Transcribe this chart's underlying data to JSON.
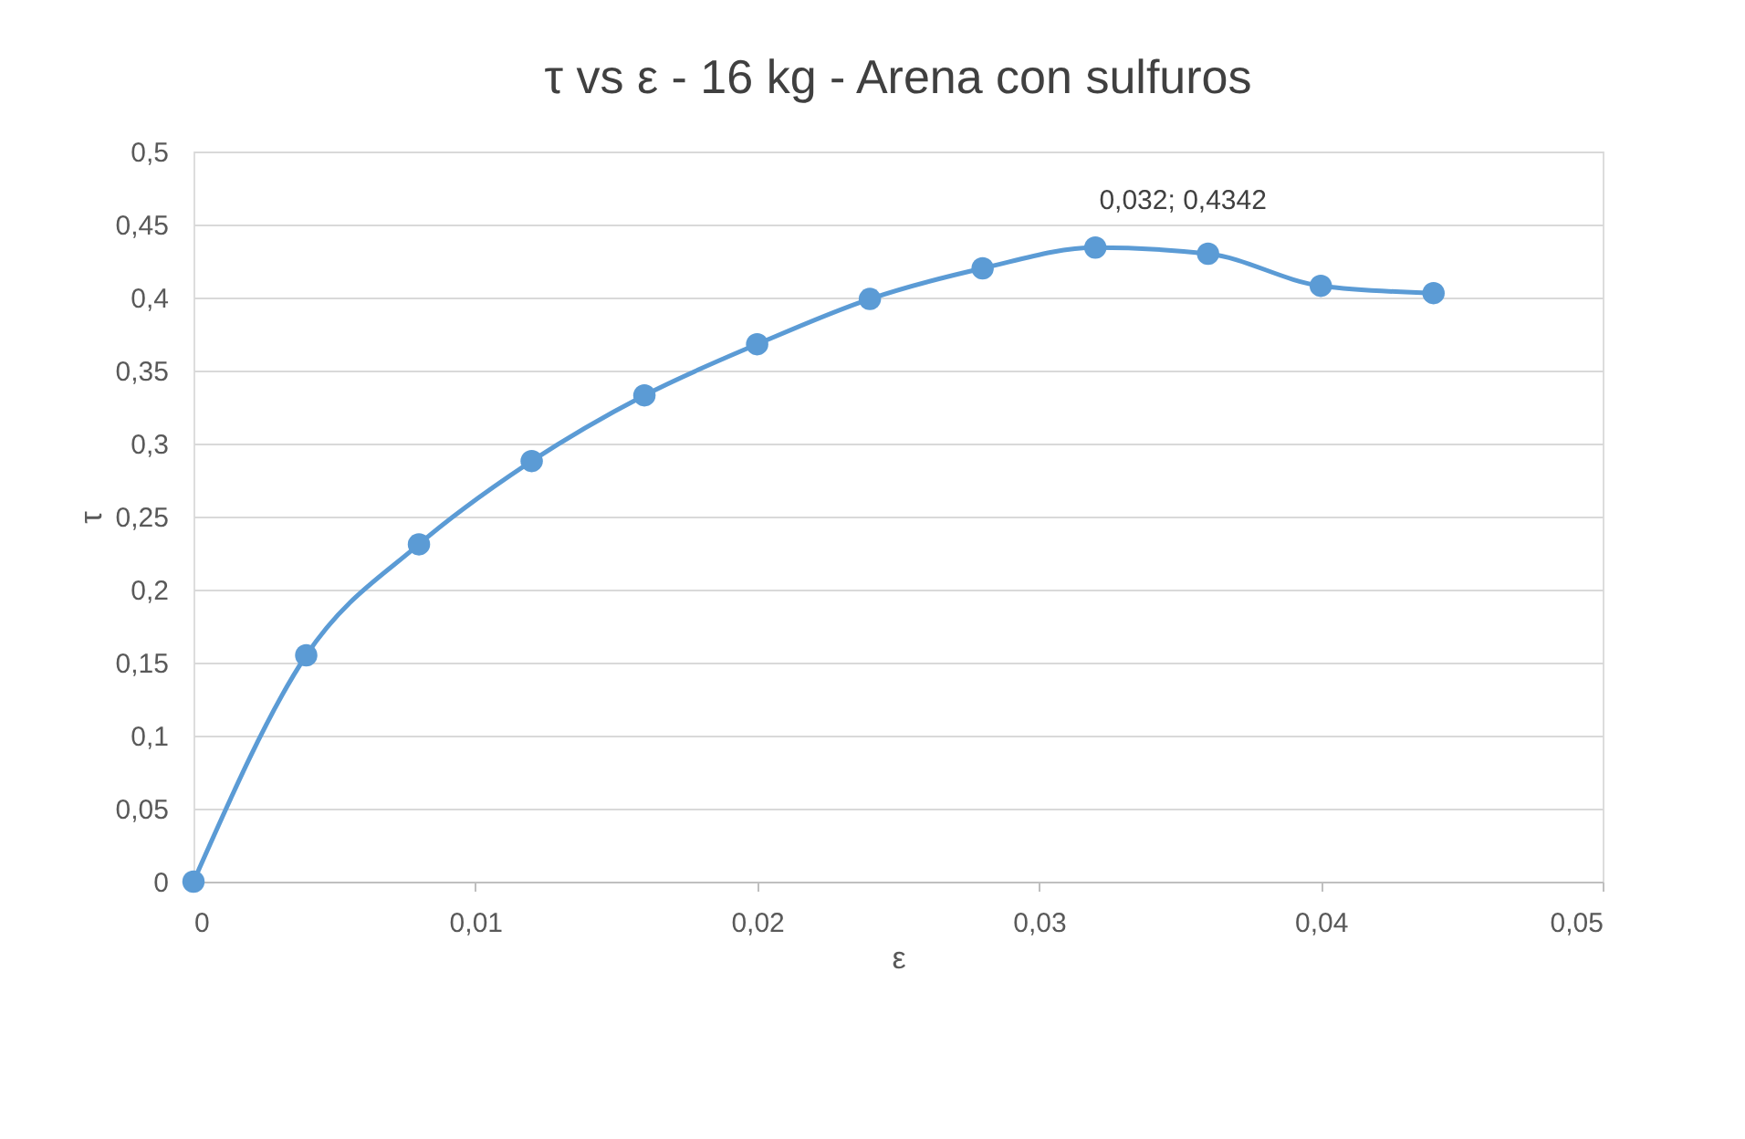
{
  "chart_data": {
    "type": "line",
    "title": "τ vs ε - 16 kg - Arena con sulfuros",
    "xlabel": "ε",
    "ylabel": "τ",
    "x": [
      0,
      0.004,
      0.008,
      0.012,
      0.016,
      0.02,
      0.024,
      0.028,
      0.032,
      0.036,
      0.04,
      0.044
    ],
    "series": [
      {
        "color": "#5b9bd5",
        "values": [
          0,
          0.155,
          0.231,
          0.288,
          0.333,
          0.368,
          0.399,
          0.42,
          0.4342,
          0.43,
          0.408,
          0.403
        ]
      }
    ],
    "xlim": [
      0,
      0.05
    ],
    "xticks": [
      {
        "value": 0,
        "label": "0"
      },
      {
        "value": 0.01,
        "label": "0,01"
      },
      {
        "value": 0.02,
        "label": "0,02"
      },
      {
        "value": 0.03,
        "label": "0,03"
      },
      {
        "value": 0.04,
        "label": "0,04"
      },
      {
        "value": 0.05,
        "label": "0,05"
      }
    ],
    "ylim": [
      0,
      0.5
    ],
    "yticks": [
      {
        "value": 0,
        "label": "0"
      },
      {
        "value": 0.05,
        "label": "0,05"
      },
      {
        "value": 0.1,
        "label": "0,1"
      },
      {
        "value": 0.15,
        "label": "0,15"
      },
      {
        "value": 0.2,
        "label": "0,2"
      },
      {
        "value": 0.25,
        "label": "0,25"
      },
      {
        "value": 0.3,
        "label": "0,3"
      },
      {
        "value": 0.35,
        "label": "0,35"
      },
      {
        "value": 0.4,
        "label": "0,4"
      },
      {
        "value": 0.45,
        "label": "0,45"
      },
      {
        "value": 0.5,
        "label": "0,5"
      }
    ],
    "annotations": [
      {
        "text": "0,032; 0,4342",
        "x": 0.032,
        "y": 0.4342
      }
    ],
    "grid": "y",
    "marker": "circle",
    "line_style": "solid"
  }
}
